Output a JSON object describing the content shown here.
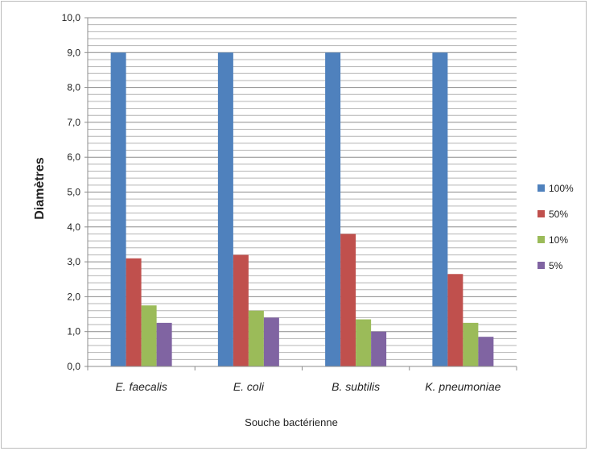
{
  "chart_data": {
    "type": "bar",
    "title": "",
    "xlabel": "Souche bactérienne",
    "ylabel": "Diamètres",
    "ylim": [
      0,
      10
    ],
    "yticks": [
      "0,0",
      "1,0",
      "2,0",
      "3,0",
      "4,0",
      "5,0",
      "6,0",
      "7,0",
      "8,0",
      "9,0",
      "10,0"
    ],
    "categories": [
      "E. faecalis",
      "E. coli",
      "B. subtilis",
      "K. pneumoniae"
    ],
    "series": [
      {
        "name": "100%",
        "color": "#4f81bd",
        "values": [
          9.0,
          9.0,
          9.0,
          9.0
        ]
      },
      {
        "name": "50%",
        "color": "#c0504d",
        "values": [
          3.1,
          3.2,
          3.8,
          2.65
        ]
      },
      {
        "name": "10%",
        "color": "#9bbb59",
        "values": [
          1.75,
          1.6,
          1.35,
          1.25
        ]
      },
      {
        "name": "5%",
        "color": "#8064a2",
        "values": [
          1.25,
          1.4,
          1.0,
          0.85
        ]
      }
    ],
    "grid": true,
    "legend_position": "right"
  }
}
